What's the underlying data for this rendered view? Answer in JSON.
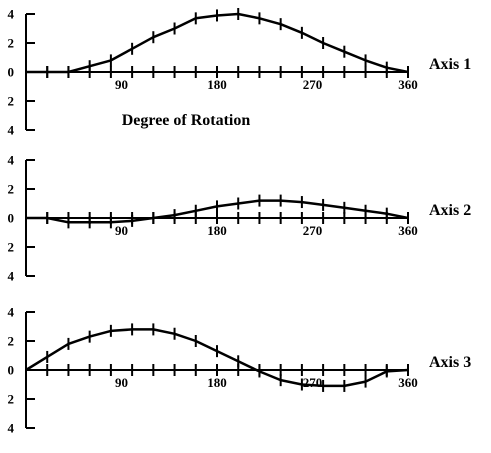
{
  "chart_data": [
    {
      "type": "line",
      "title": "Axis 1",
      "xlabel": "Degree of Rotation",
      "ylabel": "",
      "xlim": [
        0,
        360
      ],
      "ylim": [
        -4,
        4
      ],
      "x_ticks": [
        "90",
        "180",
        "270",
        "360"
      ],
      "y_ticks": [
        "4",
        "2",
        "0",
        "2",
        "4"
      ],
      "grid": false,
      "series": [
        {
          "x": [
            0,
            20,
            40,
            60,
            80,
            100,
            120,
            140,
            160,
            180,
            200,
            220,
            240,
            260,
            280,
            300,
            320,
            340,
            360
          ],
          "y": [
            0,
            0,
            0,
            0.4,
            0.8,
            1.6,
            2.4,
            3.0,
            3.7,
            3.9,
            4.0,
            3.7,
            3.3,
            2.7,
            2.0,
            1.4,
            0.8,
            0.3,
            0
          ]
        }
      ]
    },
    {
      "type": "line",
      "title": "Axis 2",
      "xlabel": "",
      "ylabel": "",
      "xlim": [
        0,
        360
      ],
      "ylim": [
        -4,
        4
      ],
      "x_ticks": [
        "90",
        "180",
        "270",
        "360"
      ],
      "y_ticks": [
        "4",
        "2",
        "0",
        "2",
        "4"
      ],
      "grid": false,
      "series": [
        {
          "x": [
            0,
            20,
            40,
            60,
            80,
            100,
            120,
            140,
            160,
            180,
            200,
            220,
            240,
            260,
            280,
            300,
            320,
            340,
            360
          ],
          "y": [
            0,
            0,
            -0.3,
            -0.3,
            -0.3,
            -0.2,
            0,
            0.2,
            0.5,
            0.8,
            1.0,
            1.2,
            1.2,
            1.1,
            0.9,
            0.7,
            0.5,
            0.3,
            0
          ]
        }
      ]
    },
    {
      "type": "line",
      "title": "Axis 3",
      "xlabel": "",
      "ylabel": "",
      "xlim": [
        0,
        360
      ],
      "ylim": [
        -4,
        4
      ],
      "x_ticks": [
        "90",
        "180",
        "270",
        "360"
      ],
      "y_ticks": [
        "4",
        "2",
        "0",
        "2",
        "4"
      ],
      "grid": false,
      "series": [
        {
          "x": [
            0,
            20,
            40,
            60,
            80,
            100,
            120,
            140,
            160,
            180,
            200,
            220,
            240,
            260,
            280,
            300,
            320,
            340,
            360
          ],
          "y": [
            0,
            0.9,
            1.8,
            2.3,
            2.7,
            2.8,
            2.8,
            2.5,
            2.0,
            1.3,
            0.6,
            -0.1,
            -0.7,
            -1.0,
            -1.1,
            -1.1,
            -0.8,
            -0.1,
            0
          ]
        }
      ]
    }
  ]
}
